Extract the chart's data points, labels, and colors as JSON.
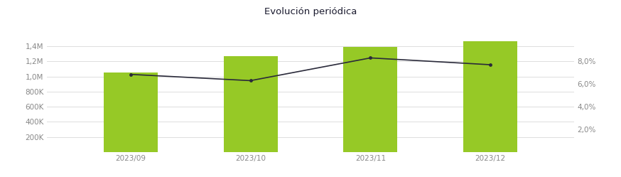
{
  "title": "Evolución periódica",
  "title_bg_color": "#96c926",
  "title_fontsize": 9.5,
  "categories": [
    "2023/09",
    "2023/10",
    "2023/11",
    "2023/12"
  ],
  "bar_values": [
    1050000,
    1270000,
    1390000,
    1460000
  ],
  "line_values": [
    0.0685,
    0.063,
    0.083,
    0.077
  ],
  "bar_color": "#96c926",
  "line_color": "#2a2a3a",
  "bar_width": 0.45,
  "ylim_left": [
    0,
    1600000
  ],
  "ylim_right": [
    0,
    0.1067
  ],
  "left_yticks": [
    200000,
    400000,
    600000,
    800000,
    1000000,
    1200000,
    1400000
  ],
  "right_yticks": [
    0.02,
    0.04,
    0.06,
    0.08
  ],
  "background_color": "#ffffff",
  "grid_color": "#d8d8d8",
  "tick_color": "#888888",
  "tick_fontsize": 7.5,
  "figsize": [
    8.74,
    2.49
  ],
  "dpi": 100
}
